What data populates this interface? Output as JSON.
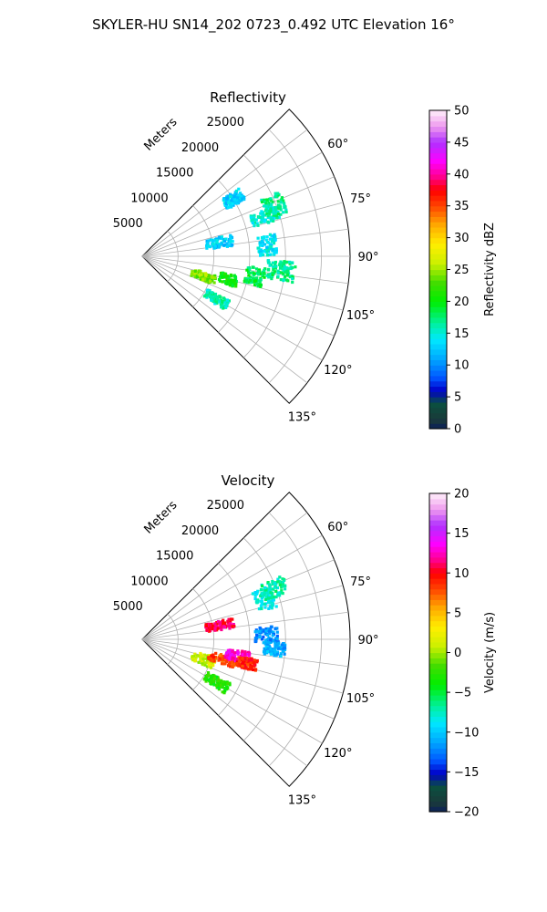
{
  "suptitle": "SKYLER-HU  SN14_202  0723_0.492 UTC Elevation 16°",
  "range_axis_label": "Meters",
  "chart_data": [
    {
      "type": "heatmap",
      "projection": "polar-sector",
      "title": "Reflectivity",
      "theta_ticks": [
        "60°",
        "75°",
        "90°",
        "105°",
        "120°",
        "135°"
      ],
      "theta_range_deg": [
        45,
        135
      ],
      "r_ticks": [
        "5000",
        "10000",
        "15000",
        "20000",
        "25000"
      ],
      "r_max": 29000,
      "colorbar": {
        "label": "Reflectivity dBZ",
        "vmin": 0,
        "vmax": 50,
        "ticks": [
          "0",
          "5",
          "10",
          "15",
          "20",
          "25",
          "30",
          "35",
          "40",
          "45",
          "50"
        ]
      },
      "echoes": [
        {
          "az": 108,
          "r": 9000,
          "value": 24
        },
        {
          "az": 105,
          "r": 12500,
          "value": 20
        },
        {
          "az": 100,
          "r": 16000,
          "value": 18
        },
        {
          "az": 96,
          "r": 19500,
          "value": 17
        },
        {
          "az": 80,
          "r": 11000,
          "value": 13
        },
        {
          "az": 72,
          "r": 18000,
          "value": 15
        },
        {
          "az": 69,
          "r": 19800,
          "value": 17
        },
        {
          "az": 58,
          "r": 15000,
          "value": 13
        },
        {
          "az": 120,
          "r": 12000,
          "value": 16
        },
        {
          "az": 85,
          "r": 17500,
          "value": 14
        }
      ]
    },
    {
      "type": "heatmap",
      "projection": "polar-sector",
      "title": "Velocity",
      "theta_ticks": [
        "60°",
        "75°",
        "90°",
        "105°",
        "120°",
        "135°"
      ],
      "theta_range_deg": [
        45,
        135
      ],
      "r_ticks": [
        "5000",
        "10000",
        "15000",
        "20000",
        "25000"
      ],
      "r_max": 29000,
      "colorbar": {
        "label": "Velocity (m/s)",
        "vmin": -20,
        "vmax": 20,
        "ticks": [
          "−20",
          "−15",
          "−10",
          "−5",
          "0",
          "5",
          "10",
          "15",
          "20"
        ]
      },
      "echoes": [
        {
          "az": 108,
          "r": 9000,
          "value": 1
        },
        {
          "az": 104,
          "r": 11500,
          "value": 8
        },
        {
          "az": 100,
          "r": 13500,
          "value": 13
        },
        {
          "az": 103,
          "r": 15000,
          "value": 9
        },
        {
          "az": 94,
          "r": 18500,
          "value": -11
        },
        {
          "az": 80,
          "r": 11000,
          "value": 11
        },
        {
          "az": 88,
          "r": 17500,
          "value": -12
        },
        {
          "az": 72,
          "r": 18000,
          "value": -8
        },
        {
          "az": 69,
          "r": 19800,
          "value": -7
        },
        {
          "az": 120,
          "r": 12000,
          "value": -3
        }
      ]
    }
  ]
}
